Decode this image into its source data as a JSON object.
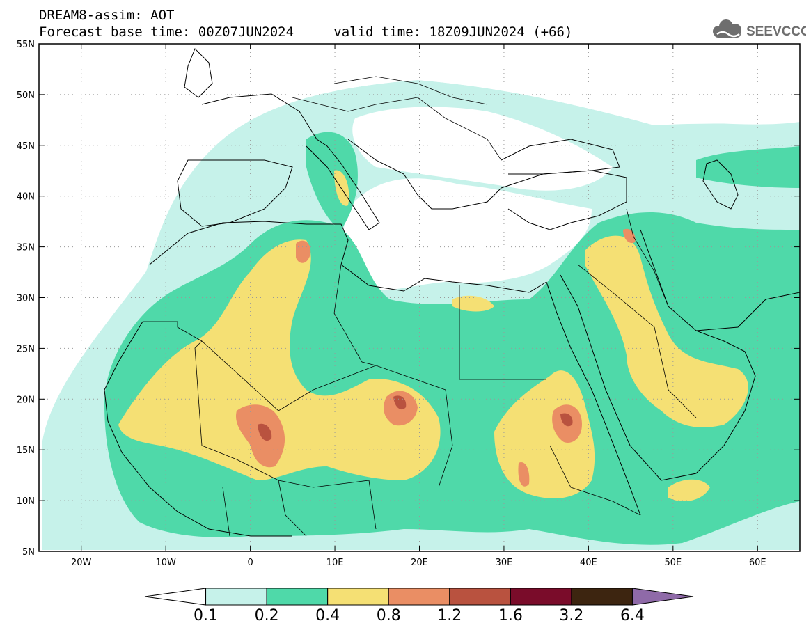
{
  "header": {
    "title": "DREAM8-assim: AOT",
    "base_label": "Forecast base time: 00Z07JUN2024",
    "valid_label": "valid time: 18Z09JUN2024 (+66)"
  },
  "logo": {
    "text": "SEEVCCC",
    "icon": "cloud-icon"
  },
  "map": {
    "lat_labels": [
      "55N",
      "50N",
      "45N",
      "40N",
      "35N",
      "30N",
      "25N",
      "20N",
      "15N",
      "10N",
      "5N"
    ],
    "lon_labels": [
      "20W",
      "10W",
      "0",
      "10E",
      "20E",
      "30E",
      "40E",
      "50E",
      "60E"
    ],
    "lat_range": [
      5,
      55
    ],
    "lon_range": [
      -25,
      65
    ],
    "grid": true
  },
  "colorbar": {
    "levels": [
      "0.1",
      "0.2",
      "0.4",
      "0.8",
      "1.2",
      "1.6",
      "3.2",
      "6.4"
    ],
    "colors": [
      "#ffffff",
      "#c6f2ea",
      "#4fd9a9",
      "#f5e074",
      "#ea8e64",
      "#b9523f",
      "#7a0c2a",
      "#3d2510",
      "#8f6aa8"
    ]
  },
  "palette": {
    "c1": "#c6f2ea",
    "c2": "#4fd9a9",
    "c3": "#f5e074",
    "c4": "#ea8e64",
    "c5": "#b9523f"
  }
}
